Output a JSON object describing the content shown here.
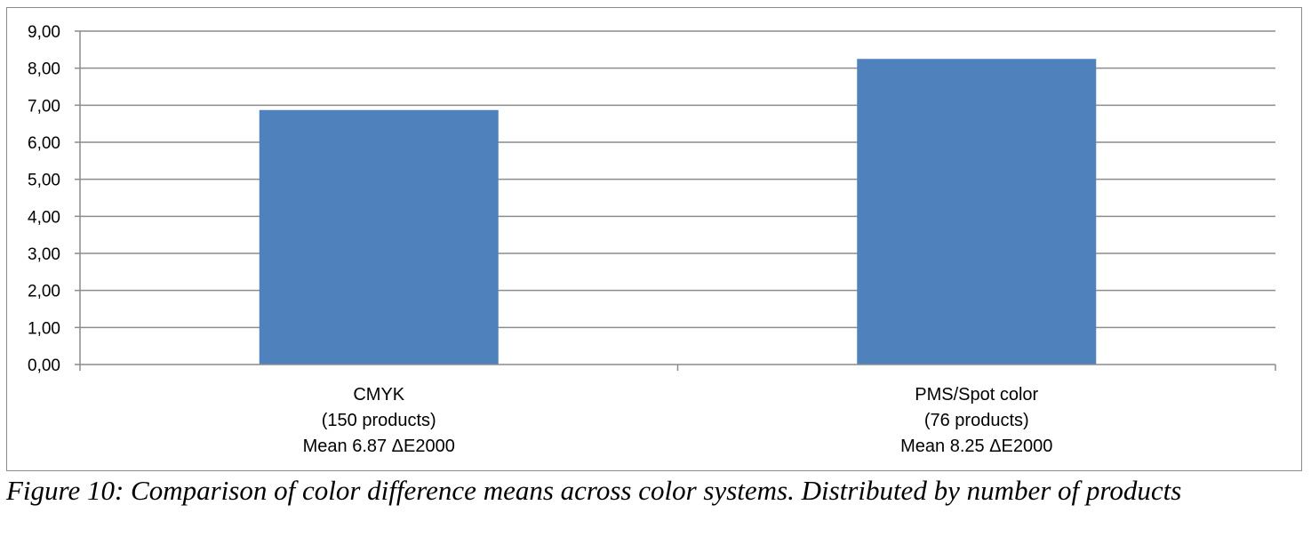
{
  "chart_data": {
    "type": "bar",
    "categories": [
      [
        "CMYK",
        "(150 products)",
        "Mean 6.87  ΔE2000"
      ],
      [
        "PMS/Spot color",
        "(76 products)",
        "Mean 8.25  ΔE2000"
      ]
    ],
    "values": [
      6.87,
      8.25
    ],
    "ylim": [
      0,
      9
    ],
    "yticks": [
      "0,00",
      "1,00",
      "2,00",
      "3,00",
      "4,00",
      "5,00",
      "6,00",
      "7,00",
      "8,00",
      "9,00"
    ],
    "grid": true,
    "legend": "none",
    "bar_color": "#4f81bd"
  },
  "caption": "Figure 10: Comparison of color difference means across color systems. Distributed by number of products"
}
